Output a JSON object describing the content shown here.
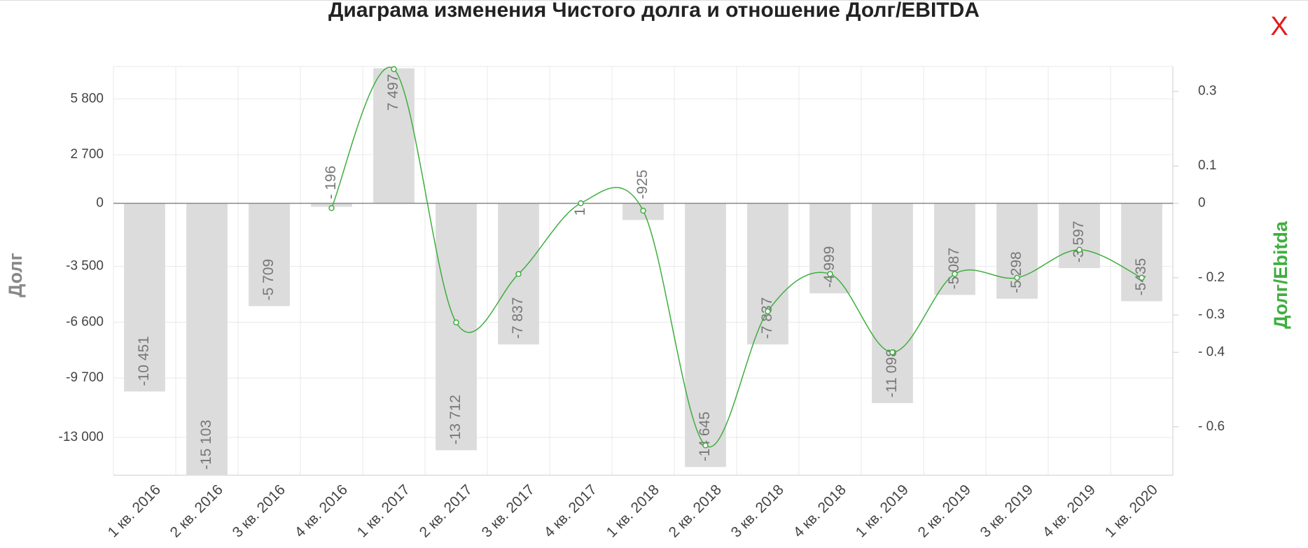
{
  "chart_data": {
    "type": "bar",
    "title": "Диаграма изменения Чистого долга и отношение Долг/EBITDA",
    "close_label": "X",
    "y_label": "Долг",
    "y2_label": "Долг/Ebitda",
    "categories": [
      "1 кв. 2016",
      "2 кв. 2016",
      "3 кв. 2016",
      "4 кв. 2016",
      "1 кв. 2017",
      "2 кв. 2017",
      "3 кв. 2017",
      "4 кв. 2017",
      "1 кв. 2018",
      "2 кв. 2018",
      "3 кв. 2018",
      "4 кв. 2018",
      "1 кв. 2019",
      "2 кв. 2019",
      "3 кв. 2019",
      "4 кв. 2019",
      "1 кв. 2020"
    ],
    "series": [
      {
        "name": "Долг",
        "type": "bar",
        "color": "#dcdcdc",
        "values": [
          -10451,
          -15103,
          -5709,
          -196,
          7497,
          -13712,
          -7837,
          1,
          -925,
          -14645,
          -7837,
          -4999,
          -11098,
          -5087,
          -5298,
          -3597,
          -5435
        ],
        "value_labels": [
          "-10 451",
          "-15 103",
          "-5 709",
          "- 196",
          "7 497",
          "-13 712",
          "-7 837",
          "1",
          "-925",
          "-14 645",
          "-7 837",
          "-4 999",
          "-11 098",
          "-5 087",
          "-5 298",
          "-3 597",
          "-5435"
        ]
      },
      {
        "name": "Долг/Ebitda",
        "type": "line",
        "axis": "y2",
        "color": "#3fae3f",
        "values": [
          null,
          null,
          null,
          -0.013,
          0.36,
          -0.32,
          -0.19,
          0,
          -0.02,
          -0.65,
          -0.29,
          -0.19,
          -0.4,
          -0.19,
          -0.2,
          -0.125,
          -0.2
        ]
      }
    ],
    "ylim": [
      -15100,
      7600
    ],
    "yticks": [
      {
        "value": 5800,
        "label": "5 800"
      },
      {
        "value": 2700,
        "label": "2 700"
      },
      0,
      {
        "value": -3500,
        "label": "-3 500"
      },
      {
        "value": -6600,
        "label": "-6 600"
      },
      {
        "value": -9700,
        "label": "-9 700"
      },
      {
        "value": -13000,
        "label": "-13 000"
      }
    ],
    "y2lim": [
      -0.73,
      0.367
    ],
    "y2ticks": [
      0.3,
      0.1,
      0,
      {
        "value": -0.2,
        "label": "- 0.2"
      },
      {
        "value": -0.3,
        "label": "- 0.3"
      },
      {
        "value": -0.4,
        "label": "- 0.4"
      },
      {
        "value": -0.6,
        "label": "- 0.6"
      }
    ],
    "grid": true
  }
}
